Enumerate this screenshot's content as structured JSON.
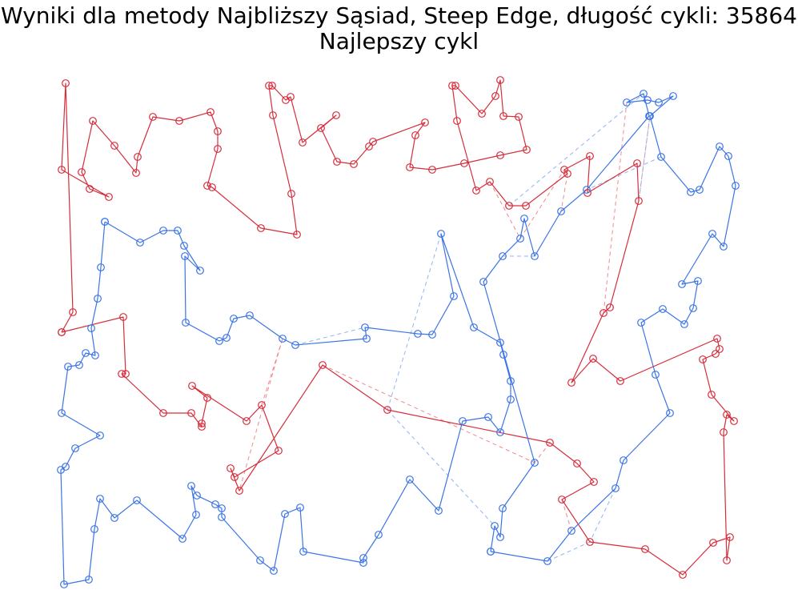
{
  "chart_data": {
    "type": "graph-cycles",
    "title": "Wyniki dla metody Najbliższy Sąsiad, Steep Edge, długość cykli: 35864",
    "subtitle": "Najlepszy cykl",
    "axes": "off",
    "colors": {
      "red": "#d62d3b",
      "blue": "#3b74e6",
      "red_dash": "#f08a8f",
      "blue_dash": "#8fb4f2"
    },
    "red_paths": [
      [
        [
          77,
          415
        ],
        [
          154,
          396
        ],
        [
          157,
          467
        ],
        [
          152,
          467
        ],
        [
          204,
          516
        ],
        [
          239,
          516
        ],
        [
          252,
          533
        ],
        [
          252,
          529
        ],
        [
          259,
          497
        ],
        [
          240,
          482
        ],
        [
          308,
          526
        ],
        [
          327,
          506
        ],
        [
          348,
          563
        ],
        [
          293,
          596
        ],
        [
          288,
          585
        ],
        [
          299,
          613
        ],
        [
          403,
          456
        ],
        [
          484,
          512
        ],
        [
          687,
          553
        ],
        [
          721,
          579
        ],
        [
          742,
          602
        ],
        [
          702,
          624
        ],
        [
          737,
          677
        ],
        [
          806,
          686
        ],
        [
          853,
          718
        ],
        [
          891,
          678
        ],
        [
          912,
          671
        ],
        [
          908,
          700
        ],
        [
          904,
          540
        ],
        [
          908,
          518
        ],
        [
          917,
          526
        ],
        [
          889,
          493
        ],
        [
          878,
          449
        ],
        [
          894,
          442
        ],
        [
          899,
          436
        ],
        [
          896,
          423
        ],
        [
          775,
          476
        ],
        [
          741,
          448
        ],
        [
          714,
          478
        ],
        [
          754,
          391
        ],
        [
          762,
          384
        ],
        [
          798,
          251
        ],
        [
          796,
          204
        ],
        [
          734,
          241
        ],
        [
          737,
          195
        ],
        [
          705,
          212
        ],
        [
          709,
          217
        ],
        [
          657,
          257
        ],
        [
          636,
          257
        ],
        [
          612,
          227
        ],
        [
          595,
          238
        ],
        [
          571,
          151
        ],
        [
          565,
          107
        ],
        [
          569,
          107
        ],
        [
          602,
          142
        ],
        [
          619,
          120
        ],
        [
          625,
          100
        ],
        [
          629,
          145
        ],
        [
          648,
          146
        ],
        [
          658,
          187
        ],
        [
          625,
          194
        ],
        [
          580,
          204
        ],
        [
          540,
          212
        ],
        [
          512,
          209
        ],
        [
          519,
          169
        ],
        [
          531,
          153
        ],
        [
          466,
          177
        ],
        [
          461,
          183
        ],
        [
          442,
          205
        ],
        [
          421,
          202
        ],
        [
          401,
          160
        ],
        [
          420,
          144
        ],
        [
          378,
          178
        ],
        [
          363,
          121
        ],
        [
          357,
          125
        ],
        [
          340,
          107
        ],
        [
          336,
          107
        ],
        [
          341,
          144
        ],
        [
          364,
          242
        ],
        [
          371,
          293
        ],
        [
          326,
          285
        ],
        [
          265,
          234
        ],
        [
          259,
          232
        ],
        [
          272,
          186
        ],
        [
          272,
          164
        ],
        [
          263,
          140
        ],
        [
          224,
          151
        ],
        [
          191,
          146
        ],
        [
          172,
          196
        ],
        [
          170,
          216
        ],
        [
          143,
          182
        ],
        [
          116,
          151
        ],
        [
          102,
          215
        ],
        [
          112,
          236
        ],
        [
          136,
          246
        ],
        [
          77,
          212
        ],
        [
          82,
          104
        ],
        [
          91,
          390
        ],
        [
          77,
          415
        ]
      ]
    ],
    "blue_paths": [
      [
        [
          131,
          277
        ],
        [
          175,
          303
        ],
        [
          204,
          288
        ],
        [
          222,
          288
        ],
        [
          230,
          307
        ],
        [
          250,
          338
        ],
        [
          231,
          320
        ],
        [
          232,
          403
        ],
        [
          274,
          426
        ],
        [
          283,
          422
        ],
        [
          292,
          398
        ],
        [
          312,
          394
        ],
        [
          353,
          423
        ],
        [
          369,
          431
        ],
        [
          458,
          423
        ],
        [
          456,
          409
        ],
        [
          522,
          417
        ],
        [
          540,
          418
        ],
        [
          567,
          370
        ],
        [
          551,
          292
        ],
        [
          592,
          409
        ],
        [
          625,
          428
        ],
        [
          629,
          443
        ],
        [
          638,
          476
        ],
        [
          638,
          499
        ],
        [
          625,
          540
        ],
        [
          610,
          521
        ],
        [
          578,
          526
        ],
        [
          548,
          638
        ],
        [
          512,
          599
        ],
        [
          473,
          668
        ],
        [
          454,
          697
        ],
        [
          454,
          703
        ],
        [
          379,
          689
        ],
        [
          375,
          634
        ],
        [
          356,
          642
        ],
        [
          342,
          713
        ],
        [
          325,
          700
        ],
        [
          277,
          646
        ],
        [
          277,
          635
        ],
        [
          269,
          630
        ],
        [
          246,
          619
        ],
        [
          239,
          607
        ],
        [
          245,
          643
        ],
        [
          228,
          673
        ],
        [
          171,
          625
        ],
        [
          143,
          647
        ],
        [
          125,
          623
        ],
        [
          118,
          661
        ],
        [
          111,
          724
        ],
        [
          80,
          730
        ],
        [
          76,
          587
        ],
        [
          82,
          583
        ],
        [
          94,
          560
        ],
        [
          125,
          544
        ],
        [
          77,
          516
        ],
        [
          85,
          458
        ],
        [
          99,
          456
        ],
        [
          107,
          441
        ],
        [
          119,
          444
        ],
        [
          114,
          410
        ],
        [
          122,
          373
        ],
        [
          126,
          334
        ],
        [
          131,
          277
        ]
      ],
      [
        [
          613,
          689
        ],
        [
          618,
          657
        ],
        [
          625,
          671
        ],
        [
          628,
          635
        ],
        [
          668,
          578
        ],
        [
          604,
          352
        ],
        [
          628,
          320
        ],
        [
          650,
          298
        ],
        [
          655,
          273
        ],
        [
          668,
          320
        ],
        [
          701,
          264
        ],
        [
          733,
          237
        ],
        [
          811,
          145
        ],
        [
          804,
          117
        ],
        [
          783,
          128
        ],
        [
          809,
          125
        ],
        [
          823,
          128
        ],
        [
          841,
          120
        ],
        [
          812,
          145
        ],
        [
          826,
          196
        ],
        [
          863,
          240
        ],
        [
          874,
          237
        ],
        [
          899,
          183
        ],
        [
          910,
          195
        ],
        [
          919,
          232
        ],
        [
          904,
          308
        ],
        [
          890,
          292
        ],
        [
          852,
          355
        ],
        [
          872,
          351
        ],
        [
          866,
          385
        ],
        [
          855,
          405
        ],
        [
          828,
          386
        ],
        [
          801,
          403
        ],
        [
          819,
          468
        ],
        [
          837,
          516
        ],
        [
          779,
          575
        ],
        [
          769,
          610
        ],
        [
          714,
          663
        ],
        [
          684,
          701
        ],
        [
          613,
          689
        ]
      ]
    ],
    "red_dashed": [
      [
        [
          91,
          390
        ],
        [
          77,
          415
        ]
      ],
      [
        [
          353,
          423
        ],
        [
          299,
          613
        ]
      ],
      [
        [
          327,
          506
        ],
        [
          353,
          423
        ]
      ],
      [
        [
          403,
          456
        ],
        [
          668,
          578
        ]
      ],
      [
        [
          687,
          553
        ],
        [
          668,
          578
        ]
      ],
      [
        [
          702,
          624
        ],
        [
          714,
          663
        ]
      ],
      [
        [
          737,
          677
        ],
        [
          806,
          686
        ]
      ],
      [
        [
          754,
          391
        ],
        [
          783,
          128
        ]
      ],
      [
        [
          798,
          251
        ],
        [
          812,
          145
        ]
      ],
      [
        [
          612,
          227
        ],
        [
          650,
          298
        ]
      ],
      [
        [
          650,
          298
        ],
        [
          705,
          212
        ]
      ],
      [
        [
          709,
          217
        ],
        [
          701,
          264
        ]
      ]
    ],
    "blue_dashed": [
      [
        [
          369,
          431
        ],
        [
          456,
          409
        ]
      ],
      [
        [
          484,
          512
        ],
        [
          551,
          292
        ]
      ],
      [
        [
          484,
          512
        ],
        [
          618,
          657
        ]
      ],
      [
        [
          628,
          320
        ],
        [
          668,
          320
        ]
      ],
      [
        [
          636,
          257
        ],
        [
          804,
          117
        ]
      ],
      [
        [
          826,
          196
        ],
        [
          733,
          237
        ]
      ],
      [
        [
          769,
          610
        ],
        [
          737,
          677
        ]
      ],
      [
        [
          684,
          701
        ],
        [
          737,
          677
        ]
      ],
      [
        [
          812,
          145
        ],
        [
          798,
          251
        ]
      ]
    ]
  }
}
